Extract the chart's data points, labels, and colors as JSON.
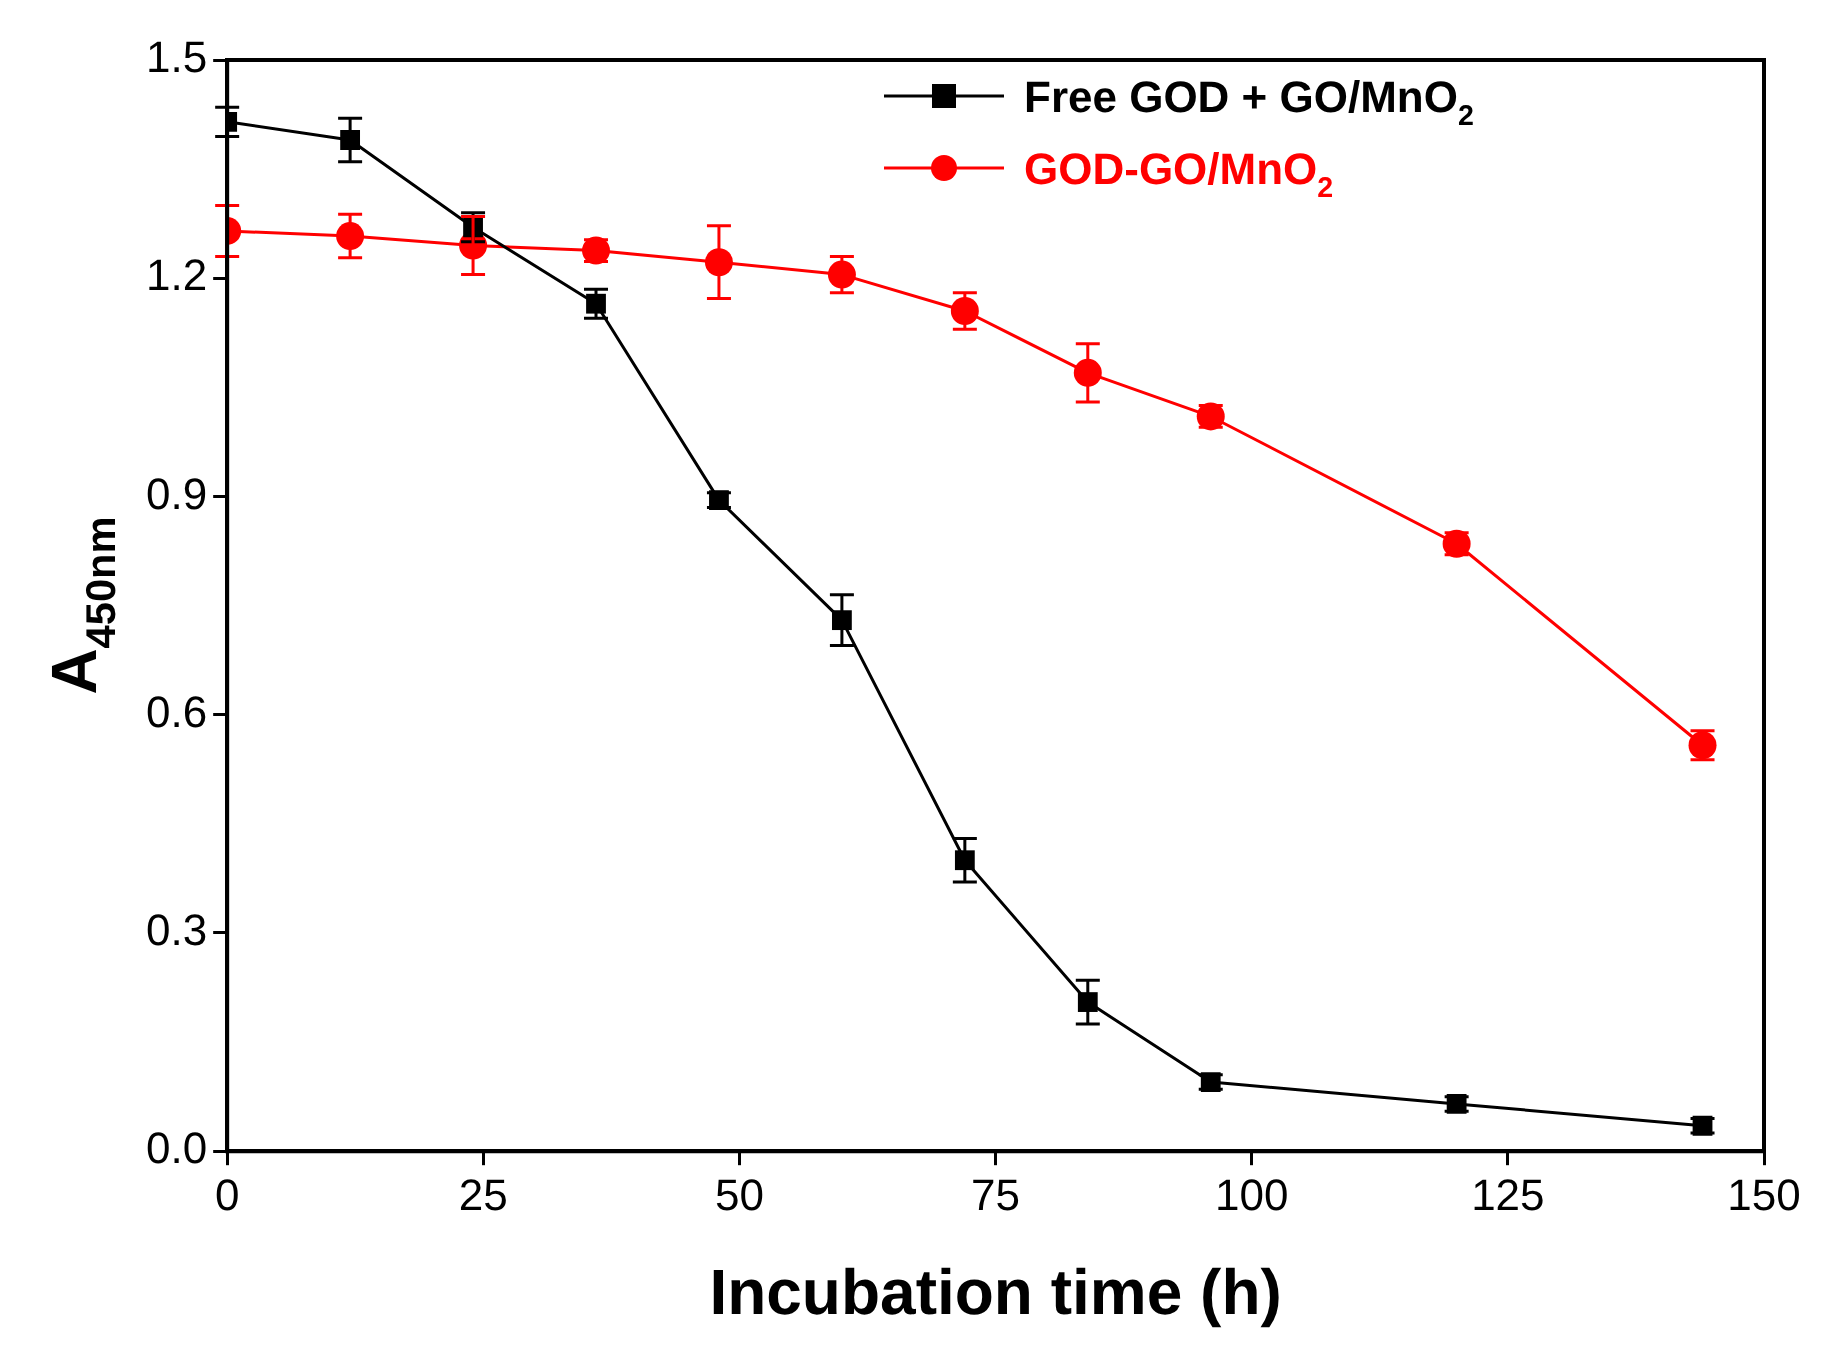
{
  "chart_data": {
    "type": "line",
    "xlabel": "Incubation time (h)",
    "ylabel": "A$_{450nm}$",
    "xlim": [
      0,
      150
    ],
    "xticks": [
      0,
      25,
      50,
      75,
      100,
      125,
      150
    ],
    "ylim": [
      0,
      1.5
    ],
    "yticks": [
      {
        "value": 0,
        "label": "0.0"
      },
      {
        "value": 0.3,
        "label": "0.3"
      },
      {
        "value": 0.6,
        "label": "0.6"
      },
      {
        "value": 0.9,
        "label": "0.9"
      },
      {
        "value": 1.2,
        "label": "1.2"
      },
      {
        "value": 1.5,
        "label": "1.5"
      }
    ],
    "grid": false,
    "legend": "top right",
    "line_style": "solid",
    "series": [
      {
        "name": "Free GOD + GO/MnO$_{2}$",
        "color": "#000000",
        "marker": "square",
        "x": [
          0,
          12,
          24,
          36,
          48,
          60,
          72,
          84,
          96,
          120,
          144
        ],
        "values": [
          1.415,
          1.39,
          1.27,
          1.165,
          0.895,
          0.73,
          0.4,
          0.205,
          0.095,
          0.065,
          0.035
        ],
        "errors": [
          0.02,
          0.03,
          0.02,
          0.02,
          0.01,
          0.035,
          0.03,
          0.03,
          0.01,
          0.01,
          0.01
        ]
      },
      {
        "name": "GOD-GO/MnO$_{2}$",
        "color": "#ff0000",
        "marker": "circle",
        "x": [
          0,
          12,
          24,
          36,
          48,
          60,
          72,
          84,
          96,
          120,
          144
        ],
        "values": [
          1.265,
          1.258,
          1.245,
          1.238,
          1.222,
          1.205,
          1.155,
          1.07,
          1.01,
          0.835,
          0.558
        ],
        "errors": [
          0.035,
          0.03,
          0.04,
          0.015,
          0.05,
          0.025,
          0.025,
          0.04,
          0.015,
          0.015,
          0.02
        ]
      }
    ]
  }
}
